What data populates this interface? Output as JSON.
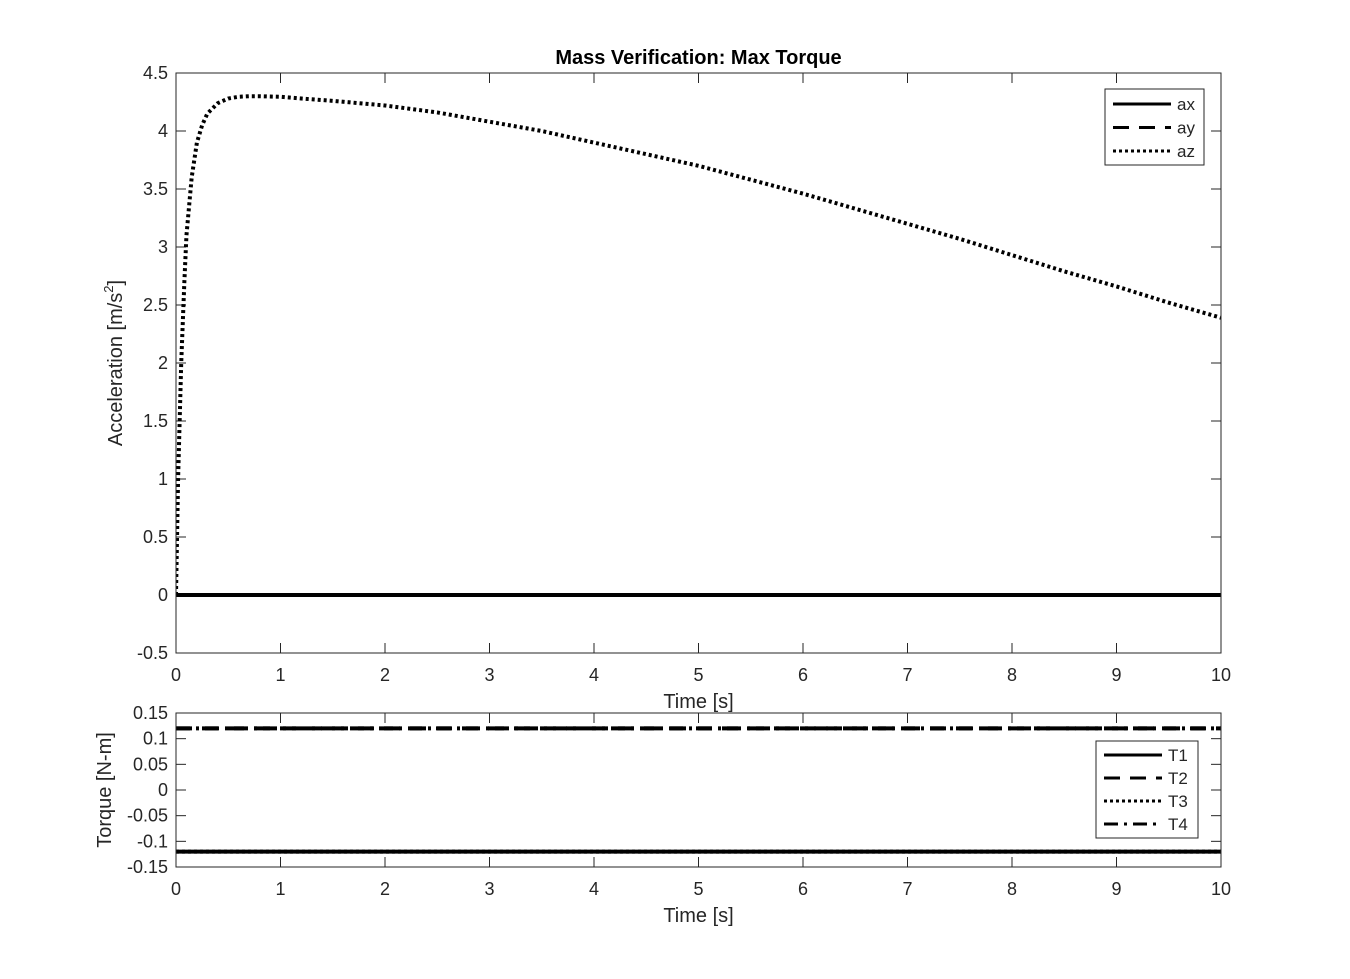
{
  "chart_data": [
    {
      "type": "line",
      "title": "Mass Verification: Max Torque",
      "xlabel": "Time [s]",
      "ylabel": "Acceleration [m/s",
      "ylabel_superscript": "2",
      "ylabel_close": "]",
      "xlim": [
        0,
        10
      ],
      "ylim": [
        -0.5,
        4.5
      ],
      "xticks": [
        0,
        1,
        2,
        3,
        4,
        5,
        6,
        7,
        8,
        9,
        10
      ],
      "yticks": [
        -0.5,
        0,
        0.5,
        1,
        1.5,
        2,
        2.5,
        3,
        3.5,
        4,
        4.5
      ],
      "grid": false,
      "legend_position": "top-right",
      "series": [
        {
          "name": "ax",
          "style": "solid",
          "x": [
            0,
            10
          ],
          "y": [
            0,
            0
          ]
        },
        {
          "name": "ay",
          "style": "dashed",
          "x": [
            0,
            10
          ],
          "y": [
            0,
            0
          ]
        },
        {
          "name": "az",
          "style": "dotted",
          "x": [
            0,
            0.02,
            0.05,
            0.08,
            0.1,
            0.15,
            0.2,
            0.25,
            0.3,
            0.4,
            0.5,
            0.6,
            0.7,
            0.8,
            1,
            1.2,
            1.5,
            2,
            2.5,
            3,
            3.5,
            4,
            4.5,
            5,
            5.5,
            6,
            6.5,
            7,
            7.5,
            8,
            8.5,
            9,
            9.5,
            10
          ],
          "y": [
            0,
            1.0,
            2.0,
            2.7,
            3.1,
            3.6,
            3.9,
            4.05,
            4.15,
            4.24,
            4.28,
            4.295,
            4.3,
            4.3,
            4.295,
            4.28,
            4.26,
            4.22,
            4.16,
            4.08,
            4.0,
            3.9,
            3.8,
            3.7,
            3.58,
            3.46,
            3.33,
            3.2,
            3.07,
            2.93,
            2.79,
            2.66,
            2.52,
            2.39
          ]
        }
      ]
    },
    {
      "type": "line",
      "xlabel": "Time [s]",
      "ylabel": "Torque [N-m]",
      "xlim": [
        0,
        10
      ],
      "ylim": [
        -0.15,
        0.15
      ],
      "xticks": [
        0,
        1,
        2,
        3,
        4,
        5,
        6,
        7,
        8,
        9,
        10
      ],
      "yticks": [
        -0.15,
        -0.1,
        -0.05,
        0,
        0.05,
        0.1,
        0.15
      ],
      "grid": false,
      "legend_position": "bottom-right",
      "series": [
        {
          "name": "T1",
          "style": "solid",
          "x": [
            0,
            10
          ],
          "y": [
            -0.12,
            -0.12
          ]
        },
        {
          "name": "T2",
          "style": "dashed",
          "x": [
            0,
            10
          ],
          "y": [
            0.12,
            0.12
          ]
        },
        {
          "name": "T3",
          "style": "dotted",
          "x": [
            0,
            10
          ],
          "y": [
            -0.12,
            -0.12
          ]
        },
        {
          "name": "T4",
          "style": "dashdot",
          "x": [
            0,
            10
          ],
          "y": [
            0.12,
            0.12
          ]
        }
      ]
    }
  ]
}
